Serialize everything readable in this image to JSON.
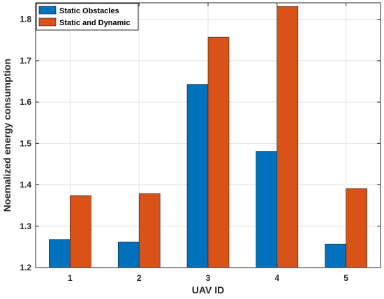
{
  "chart_data": {
    "type": "bar",
    "categories": [
      "1",
      "2",
      "3",
      "4",
      "5"
    ],
    "series": [
      {
        "name": "Static Obstacles",
        "values": [
          1.268,
          1.262,
          1.643,
          1.481,
          1.257
        ]
      },
      {
        "name": "Static and Dynamic",
        "values": [
          1.374,
          1.379,
          1.757,
          1.831,
          1.391
        ]
      }
    ],
    "title": "",
    "xlabel": "UAV ID",
    "ylabel": "Noemalized energy consumption",
    "ylim": [
      1.2,
      1.84
    ],
    "yticks": [
      "1.2",
      "1.3",
      "1.4",
      "1.5",
      "1.6",
      "1.7",
      "1.8"
    ],
    "grid": true,
    "legend_position": "top-left",
    "colors": {
      "series0": "#0072BD",
      "series1": "#D95319",
      "grid": "#e3e3e3",
      "axis": "#262626"
    }
  }
}
